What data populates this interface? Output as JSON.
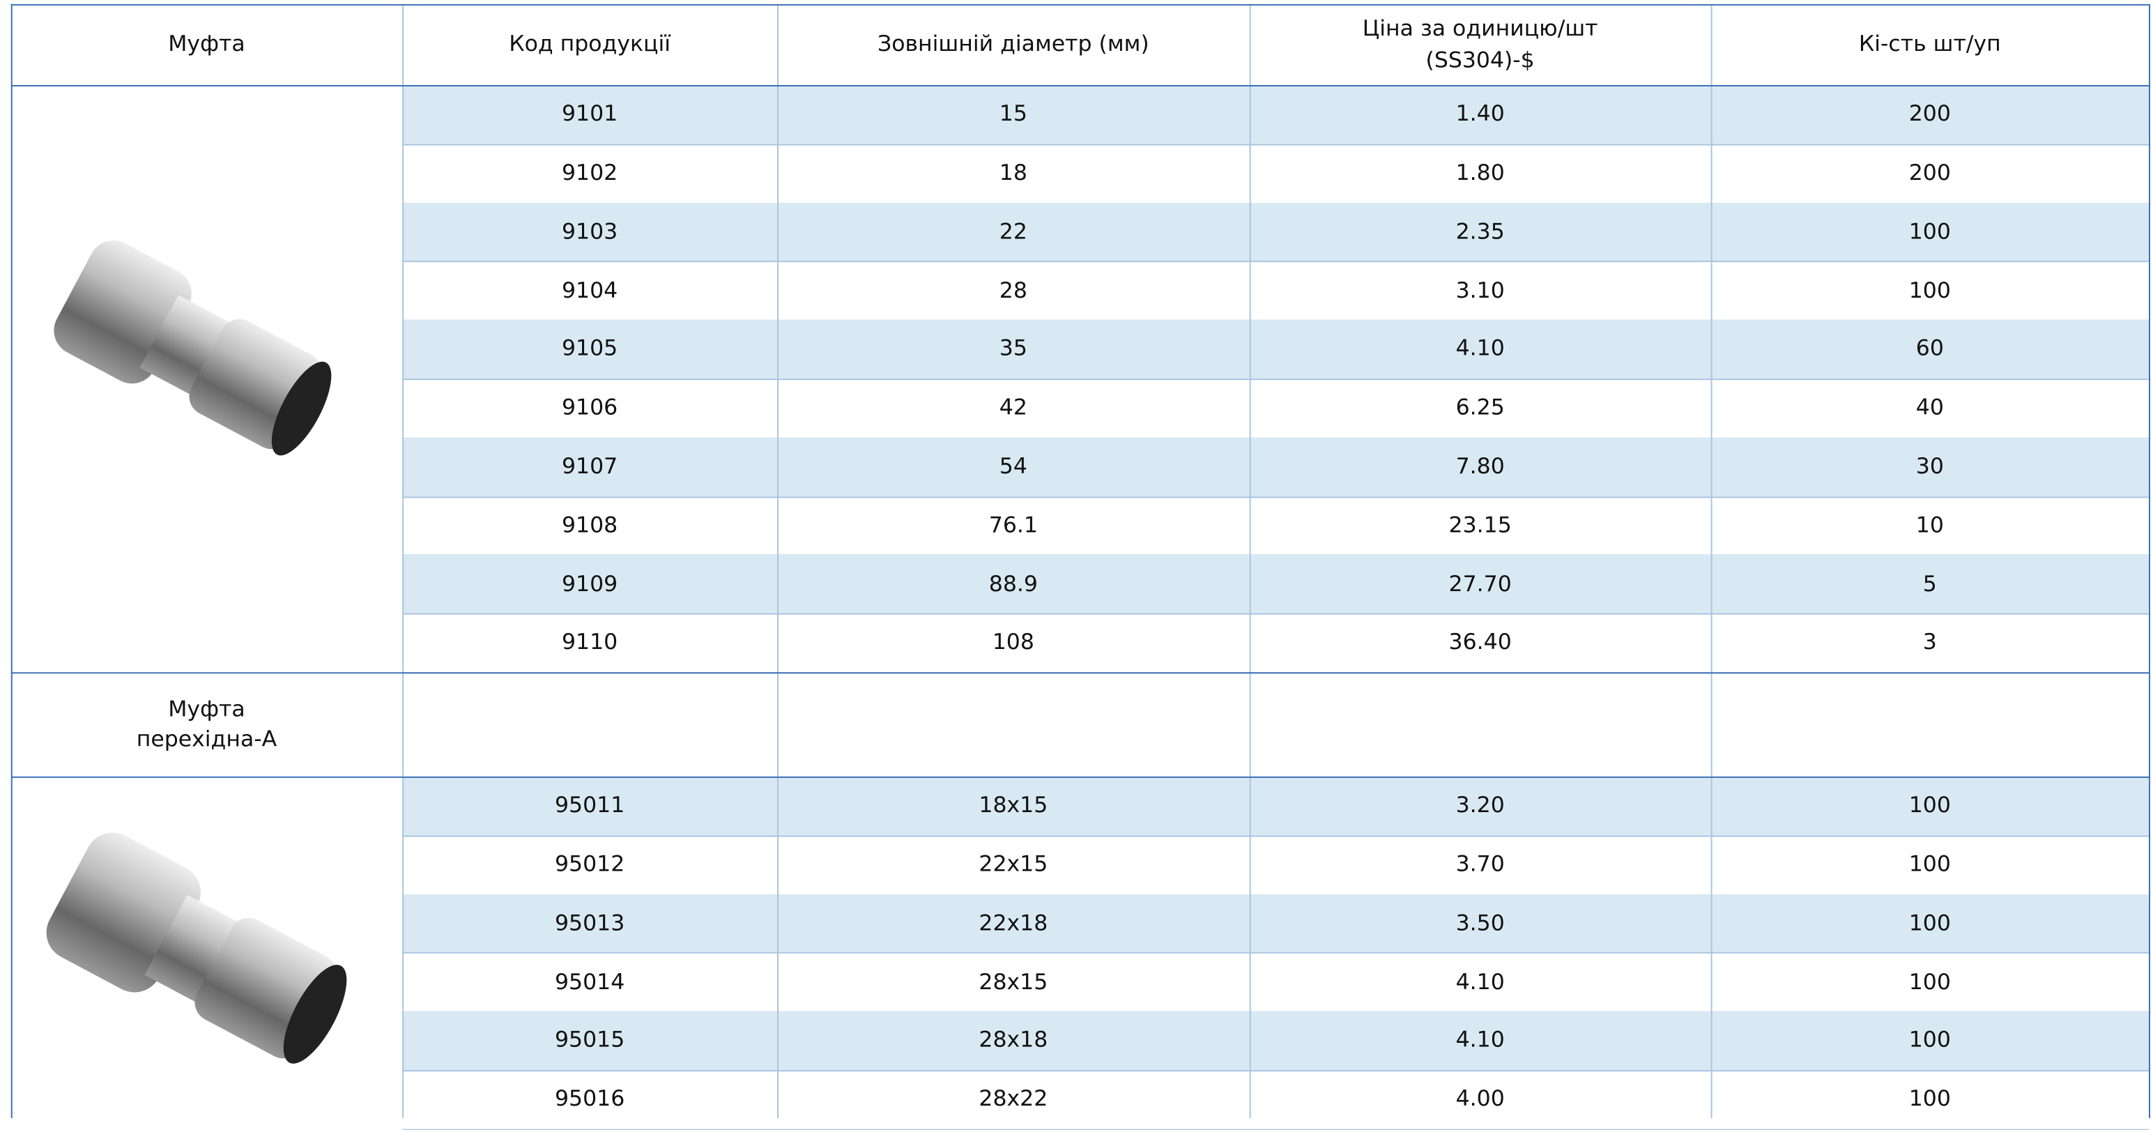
{
  "header": [
    "Муфта",
    "Код продукції",
    "Зовнішній діаметр (мм)",
    "Ціна за одиницю/шт\n(SS304)-$",
    "Кі-сть шт/уп"
  ],
  "sections": [
    {
      "rows": [
        [
          "9101",
          "15",
          "1.40",
          "200"
        ],
        [
          "9102",
          "18",
          "1.80",
          "200"
        ],
        [
          "9103",
          "22",
          "2.35",
          "100"
        ],
        [
          "9104",
          "28",
          "3.10",
          "100"
        ],
        [
          "9105",
          "35",
          "4.10",
          "60"
        ],
        [
          "9106",
          "42",
          "6.25",
          "40"
        ],
        [
          "9107",
          "54",
          "7.80",
          "30"
        ],
        [
          "9108",
          "76.1",
          "23.15",
          "10"
        ],
        [
          "9109",
          "88.9",
          "27.70",
          "5"
        ],
        [
          "9110",
          "108",
          "36.40",
          "3"
        ]
      ]
    },
    {
      "label": "Муфта\nперехідна-А",
      "rows": [
        [
          "95011",
          "18x15",
          "3.20",
          "100"
        ],
        [
          "95012",
          "22x15",
          "3.70",
          "100"
        ],
        [
          "95013",
          "22x18",
          "3.50",
          "100"
        ],
        [
          "95014",
          "28x15",
          "4.10",
          "100"
        ],
        [
          "95015",
          "28x18",
          "4.10",
          "100"
        ],
        [
          "95016",
          "28x22",
          "4.00",
          "100"
        ]
      ]
    }
  ]
}
